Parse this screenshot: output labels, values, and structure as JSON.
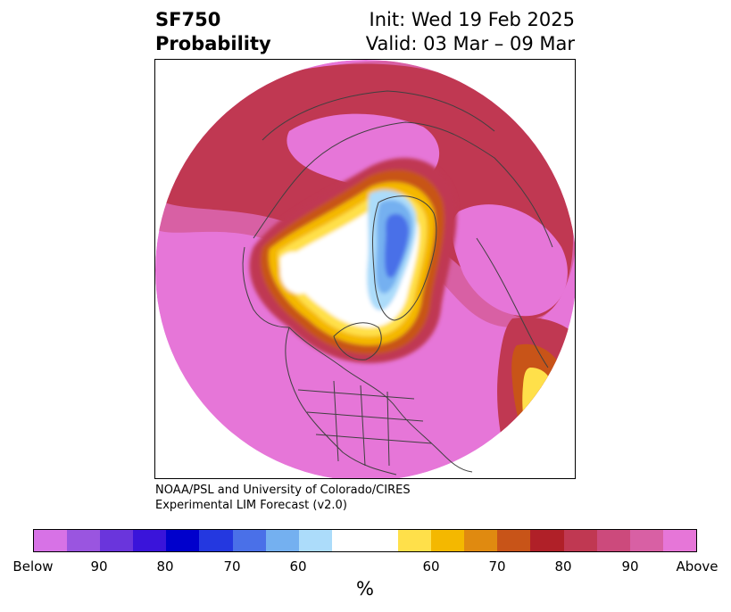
{
  "title": {
    "line1": "SF750",
    "line2": "Probability",
    "init": "Init: Wed 19 Feb 2025",
    "valid": "Valid: 03 Mar – 09 Mar"
  },
  "credit": {
    "line1": "NOAA/PSL and University of Colorado/CIRES",
    "line2": "Experimental LIM Forecast (v2.0)"
  },
  "colorbar": {
    "colors": [
      "#d772e6",
      "#9a55e0",
      "#6a35dc",
      "#3a14da",
      "#0000cc",
      "#2438e0",
      "#4a70e8",
      "#74b0f0",
      "#acdcfa",
      "#ffffff",
      "#ffffff",
      "#ffe04a",
      "#f4b800",
      "#e08a10",
      "#c85418",
      "#b02028",
      "#c03852",
      "#cc4a7c",
      "#d860a4",
      "#e676d8"
    ],
    "tick_labels": [
      "Below",
      "90",
      "80",
      "70",
      "60",
      "60",
      "70",
      "80",
      "90",
      "Above"
    ],
    "unit": "%"
  },
  "map": {
    "colors": {
      "above": "#e676d8",
      "above90": "#d860a4",
      "above80": "#c03852",
      "above75": "#b02028",
      "above70": "#c85418",
      "above65": "#e08a10",
      "above60": "#f4b800",
      "above55": "#ffe04a",
      "neutral": "#ffffff",
      "below60": "#acdcfa",
      "below65": "#74b0f0",
      "below70": "#4a70e8",
      "coast": "#404040"
    }
  }
}
